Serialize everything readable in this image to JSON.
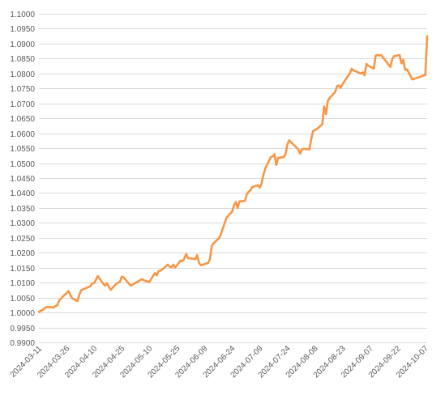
{
  "chart_data": {
    "type": "line",
    "title": "",
    "xlabel": "",
    "ylabel": "",
    "ylim": [
      0.99,
      1.1
    ],
    "grid": true,
    "legend": "none",
    "line_color": "#f79646",
    "grid_color": "#d9d9d9",
    "y_ticks": [
      "0.9900",
      "0.9950",
      "1.0000",
      "1.0050",
      "1.0100",
      "1.0150",
      "1.0200",
      "1.0250",
      "1.0300",
      "1.0350",
      "1.0400",
      "1.0450",
      "1.0500",
      "1.0550",
      "1.0600",
      "1.0650",
      "1.0700",
      "1.0750",
      "1.0800",
      "1.0850",
      "1.0900",
      "1.0950",
      "1.1000"
    ],
    "x_ticks": [
      "2024-03-11",
      "2024-03-26",
      "2024-04-10",
      "2024-04-25",
      "2024-05-10",
      "2024-05-25",
      "2024-06-09",
      "2024-06-24",
      "2024-07-09",
      "2024-07-24",
      "2024-08-08",
      "2024-08-23",
      "2024-09-07",
      "2024-09-22",
      "2024-10-07"
    ],
    "x_range": [
      "2024-03-11",
      "2024-10-08"
    ],
    "series": [
      {
        "x": [
          "2024-03-11",
          "2024-03-12",
          "2024-03-13",
          "2024-03-14",
          "2024-03-15",
          "2024-03-18",
          "2024-03-19",
          "2024-03-20",
          "2024-03-21",
          "2024-03-22",
          "2024-03-25",
          "2024-03-26",
          "2024-03-27",
          "2024-03-28",
          "2024-03-29",
          "2024-04-01",
          "2024-04-02",
          "2024-04-03",
          "2024-04-08",
          "2024-04-09",
          "2024-04-10",
          "2024-04-11",
          "2024-04-12",
          "2024-04-15",
          "2024-04-16",
          "2024-04-17",
          "2024-04-18",
          "2024-04-19",
          "2024-04-22",
          "2024-04-23",
          "2024-04-24",
          "2024-04-25",
          "2024-04-26",
          "2024-04-29",
          "2024-04-30",
          "2024-05-06",
          "2024-05-07",
          "2024-05-08",
          "2024-05-09",
          "2024-05-10",
          "2024-05-13",
          "2024-05-14",
          "2024-05-15",
          "2024-05-16",
          "2024-05-17",
          "2024-05-20",
          "2024-05-21",
          "2024-05-22",
          "2024-05-23",
          "2024-05-24",
          "2024-05-27",
          "2024-05-28",
          "2024-05-29",
          "2024-05-30",
          "2024-05-31",
          "2024-06-03",
          "2024-06-04",
          "2024-06-05",
          "2024-06-06",
          "2024-06-07",
          "2024-06-11",
          "2024-06-12",
          "2024-06-13",
          "2024-06-14",
          "2024-06-17",
          "2024-06-18",
          "2024-06-19",
          "2024-06-20",
          "2024-06-21",
          "2024-06-24",
          "2024-06-25",
          "2024-06-26",
          "2024-06-27",
          "2024-06-28",
          "2024-07-01",
          "2024-07-02",
          "2024-07-03",
          "2024-07-04",
          "2024-07-05",
          "2024-07-08",
          "2024-07-09",
          "2024-07-10",
          "2024-07-11",
          "2024-07-12",
          "2024-07-15",
          "2024-07-16",
          "2024-07-17",
          "2024-07-18",
          "2024-07-19",
          "2024-07-22",
          "2024-07-23",
          "2024-07-24",
          "2024-07-25",
          "2024-07-26",
          "2024-07-29",
          "2024-07-30",
          "2024-07-31",
          "2024-08-01",
          "2024-08-02",
          "2024-08-05",
          "2024-08-06",
          "2024-08-07",
          "2024-08-08",
          "2024-08-09",
          "2024-08-12",
          "2024-08-13",
          "2024-08-14",
          "2024-08-15",
          "2024-08-16",
          "2024-08-19",
          "2024-08-20",
          "2024-08-21",
          "2024-08-22",
          "2024-08-23",
          "2024-08-26",
          "2024-08-27",
          "2024-08-28",
          "2024-08-29",
          "2024-08-30",
          "2024-09-02",
          "2024-09-03",
          "2024-09-04",
          "2024-09-05",
          "2024-09-06",
          "2024-09-09",
          "2024-09-10",
          "2024-09-11",
          "2024-09-12",
          "2024-09-13",
          "2024-09-18",
          "2024-09-19",
          "2024-09-20",
          "2024-09-23",
          "2024-09-24",
          "2024-09-25",
          "2024-09-26",
          "2024-09-27",
          "2024-09-30",
          "2024-10-07",
          "2024-10-08"
        ],
        "values": [
          1.0002,
          1.0006,
          1.0008,
          1.0014,
          1.0018,
          1.0018,
          1.0016,
          1.0022,
          1.0024,
          1.004,
          1.006,
          1.0064,
          1.0072,
          1.006,
          1.0048,
          1.0038,
          1.006,
          1.0075,
          1.0088,
          1.0098,
          1.0098,
          1.011,
          1.0122,
          1.0096,
          1.009,
          1.0098,
          1.0086,
          1.0076,
          1.0096,
          1.01,
          1.0102,
          1.012,
          1.0118,
          1.0096,
          1.009,
          1.0112,
          1.0108,
          1.0106,
          1.0104,
          1.0102,
          1.0132,
          1.0124,
          1.0138,
          1.014,
          1.0144,
          1.016,
          1.0154,
          1.0152,
          1.016,
          1.015,
          1.0174,
          1.0172,
          1.018,
          1.0196,
          1.0182,
          1.018,
          1.0178,
          1.0192,
          1.0166,
          1.0158,
          1.0166,
          1.018,
          1.0224,
          1.0232,
          1.025,
          1.0264,
          1.0282,
          1.03,
          1.0318,
          1.0338,
          1.0358,
          1.037,
          1.035,
          1.0372,
          1.0374,
          1.0396,
          1.0404,
          1.041,
          1.042,
          1.0426,
          1.0418,
          1.0432,
          1.046,
          1.0482,
          1.052,
          1.0522,
          1.053,
          1.0494,
          1.0518,
          1.052,
          1.053,
          1.0562,
          1.0576,
          1.057,
          1.0552,
          1.0546,
          1.0532,
          1.0546,
          1.0548,
          1.0546,
          1.058,
          1.0608,
          1.061,
          1.0614,
          1.063,
          1.069,
          1.0664,
          1.0708,
          1.0718,
          1.0738,
          1.0758,
          1.076,
          1.0752,
          1.0764,
          1.0792,
          1.08,
          1.0816,
          1.081,
          1.0808,
          1.08,
          1.0804,
          1.0794,
          1.0832,
          1.0826,
          1.0816,
          1.086,
          1.0862,
          1.086,
          1.0862,
          1.0822,
          1.0848,
          1.0858,
          1.0862,
          1.0834,
          1.0846,
          1.0812,
          1.0814,
          1.078,
          1.0795,
          1.0925
        ]
      }
    ]
  }
}
